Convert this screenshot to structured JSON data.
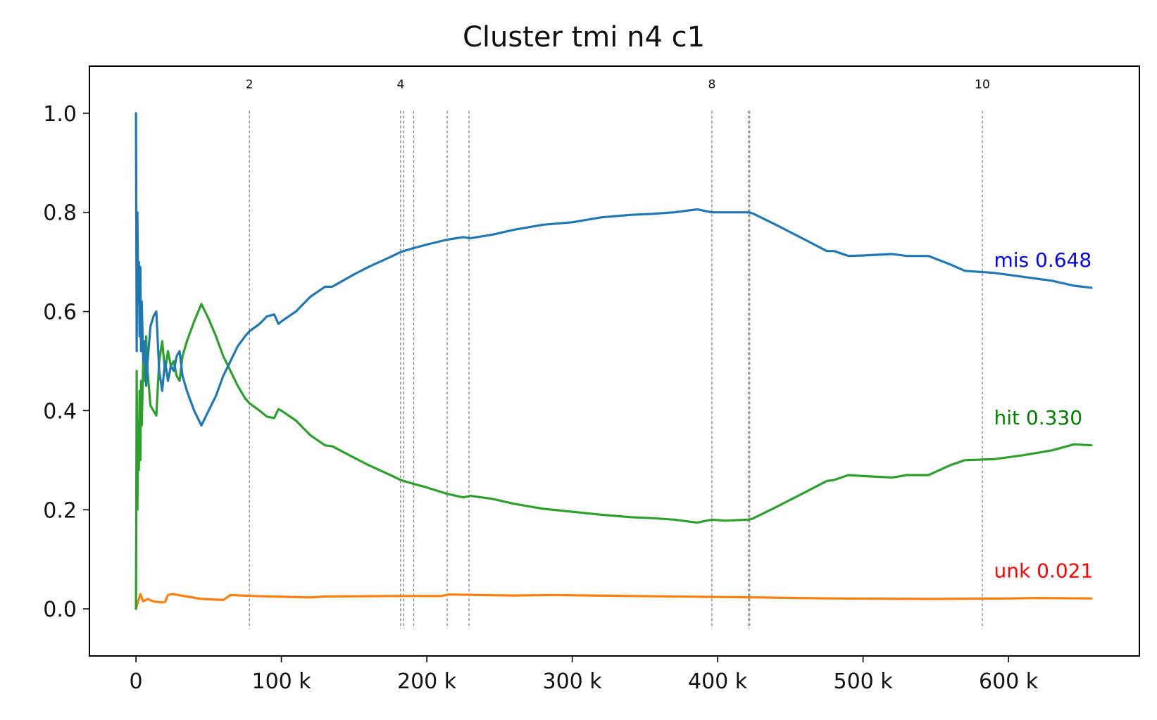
{
  "chart_data": {
    "type": "line",
    "title": "Cluster tmi n4 c1",
    "xlabel": "",
    "ylabel": "",
    "xlim": [
      -32000,
      690000
    ],
    "ylim": [
      -0.095,
      1.095
    ],
    "x_ticks": [
      {
        "value": 0,
        "label": "0"
      },
      {
        "value": 100000,
        "label": "100 k"
      },
      {
        "value": 200000,
        "label": "200 k"
      },
      {
        "value": 300000,
        "label": "300 k"
      },
      {
        "value": 400000,
        "label": "400 k"
      },
      {
        "value": 500000,
        "label": "500 k"
      },
      {
        "value": 600000,
        "label": "600 k"
      }
    ],
    "y_ticks": [
      {
        "value": 0.0,
        "label": "0.0"
      },
      {
        "value": 0.2,
        "label": "0.2"
      },
      {
        "value": 0.4,
        "label": "0.4"
      },
      {
        "value": 0.6,
        "label": "0.6"
      },
      {
        "value": 0.8,
        "label": "0.8"
      },
      {
        "value": 1.0,
        "label": "1.0"
      }
    ],
    "grid": false,
    "legend": "none",
    "vlines": [
      {
        "x": 78000,
        "label": "2"
      },
      {
        "x": 182000,
        "label": "4"
      },
      {
        "x": 184000,
        "label": ""
      },
      {
        "x": 191000,
        "label": ""
      },
      {
        "x": 214000,
        "label": ""
      },
      {
        "x": 229000,
        "label": ""
      },
      {
        "x": 396000,
        "label": "8"
      },
      {
        "x": 421000,
        "label": ""
      },
      {
        "x": 422000,
        "label": ""
      },
      {
        "x": 582000,
        "label": "10"
      }
    ],
    "series": [
      {
        "name": "mis",
        "color": "#1f77b4",
        "label_color": "#0000ff",
        "end_label": "mis 0.648",
        "points": [
          [
            0,
            1.0
          ],
          [
            500,
            0.52
          ],
          [
            1000,
            0.8
          ],
          [
            1500,
            0.62
          ],
          [
            2000,
            0.7
          ],
          [
            2500,
            0.55
          ],
          [
            3000,
            0.69
          ],
          [
            3500,
            0.52
          ],
          [
            4000,
            0.62
          ],
          [
            5000,
            0.5
          ],
          [
            6000,
            0.54
          ],
          [
            7000,
            0.45
          ],
          [
            8000,
            0.5
          ],
          [
            10000,
            0.57
          ],
          [
            12000,
            0.59
          ],
          [
            14000,
            0.6
          ],
          [
            16000,
            0.48
          ],
          [
            18000,
            0.44
          ],
          [
            20000,
            0.5
          ],
          [
            22000,
            0.46
          ],
          [
            24000,
            0.49
          ],
          [
            26000,
            0.48
          ],
          [
            28000,
            0.51
          ],
          [
            30000,
            0.52
          ],
          [
            32000,
            0.47
          ],
          [
            35000,
            0.44
          ],
          [
            40000,
            0.4
          ],
          [
            45000,
            0.37
          ],
          [
            50000,
            0.4
          ],
          [
            55000,
            0.43
          ],
          [
            60000,
            0.47
          ],
          [
            65000,
            0.5
          ],
          [
            70000,
            0.53
          ],
          [
            75000,
            0.55
          ],
          [
            78000,
            0.56
          ],
          [
            85000,
            0.575
          ],
          [
            90000,
            0.59
          ],
          [
            95000,
            0.594
          ],
          [
            98000,
            0.575
          ],
          [
            100000,
            0.58
          ],
          [
            110000,
            0.6
          ],
          [
            120000,
            0.63
          ],
          [
            130000,
            0.65
          ],
          [
            135000,
            0.65
          ],
          [
            150000,
            0.675
          ],
          [
            160000,
            0.69
          ],
          [
            175000,
            0.71
          ],
          [
            182000,
            0.72
          ],
          [
            191000,
            0.728
          ],
          [
            200000,
            0.735
          ],
          [
            214000,
            0.745
          ],
          [
            225000,
            0.75
          ],
          [
            230000,
            0.748
          ],
          [
            245000,
            0.755
          ],
          [
            260000,
            0.765
          ],
          [
            280000,
            0.775
          ],
          [
            300000,
            0.78
          ],
          [
            320000,
            0.79
          ],
          [
            340000,
            0.795
          ],
          [
            355000,
            0.797
          ],
          [
            370000,
            0.8
          ],
          [
            386000,
            0.806
          ],
          [
            396000,
            0.8
          ],
          [
            405000,
            0.8
          ],
          [
            421000,
            0.8
          ],
          [
            424000,
            0.798
          ],
          [
            440000,
            0.775
          ],
          [
            460000,
            0.745
          ],
          [
            475000,
            0.722
          ],
          [
            480000,
            0.722
          ],
          [
            490000,
            0.712
          ],
          [
            500000,
            0.713
          ],
          [
            520000,
            0.716
          ],
          [
            530000,
            0.712
          ],
          [
            545000,
            0.712
          ],
          [
            560000,
            0.695
          ],
          [
            570000,
            0.682
          ],
          [
            590000,
            0.678
          ],
          [
            610000,
            0.67
          ],
          [
            630000,
            0.662
          ],
          [
            645000,
            0.652
          ],
          [
            657000,
            0.648
          ]
        ]
      },
      {
        "name": "hit",
        "color": "#2ca02c",
        "label_color": "#008000",
        "end_label": "hit 0.330",
        "points": [
          [
            0,
            0.0
          ],
          [
            500,
            0.48
          ],
          [
            1000,
            0.2
          ],
          [
            1500,
            0.38
          ],
          [
            2000,
            0.28
          ],
          [
            2500,
            0.44
          ],
          [
            3000,
            0.3
          ],
          [
            3500,
            0.46
          ],
          [
            4000,
            0.37
          ],
          [
            5000,
            0.5
          ],
          [
            6000,
            0.46
          ],
          [
            7000,
            0.55
          ],
          [
            8000,
            0.48
          ],
          [
            10000,
            0.41
          ],
          [
            12000,
            0.4
          ],
          [
            14000,
            0.39
          ],
          [
            16000,
            0.5
          ],
          [
            18000,
            0.54
          ],
          [
            20000,
            0.48
          ],
          [
            22000,
            0.52
          ],
          [
            24000,
            0.49
          ],
          [
            26000,
            0.5
          ],
          [
            28000,
            0.47
          ],
          [
            30000,
            0.46
          ],
          [
            32000,
            0.51
          ],
          [
            35000,
            0.54
          ],
          [
            40000,
            0.58
          ],
          [
            45000,
            0.615
          ],
          [
            50000,
            0.585
          ],
          [
            55000,
            0.55
          ],
          [
            60000,
            0.51
          ],
          [
            65000,
            0.48
          ],
          [
            70000,
            0.45
          ],
          [
            75000,
            0.425
          ],
          [
            78000,
            0.415
          ],
          [
            85000,
            0.4
          ],
          [
            90000,
            0.388
          ],
          [
            95000,
            0.385
          ],
          [
            98000,
            0.403
          ],
          [
            100000,
            0.4
          ],
          [
            110000,
            0.38
          ],
          [
            120000,
            0.35
          ],
          [
            130000,
            0.33
          ],
          [
            135000,
            0.328
          ],
          [
            150000,
            0.305
          ],
          [
            160000,
            0.29
          ],
          [
            175000,
            0.27
          ],
          [
            182000,
            0.26
          ],
          [
            191000,
            0.252
          ],
          [
            200000,
            0.245
          ],
          [
            214000,
            0.232
          ],
          [
            225000,
            0.225
          ],
          [
            230000,
            0.228
          ],
          [
            245000,
            0.222
          ],
          [
            260000,
            0.212
          ],
          [
            280000,
            0.202
          ],
          [
            300000,
            0.196
          ],
          [
            320000,
            0.19
          ],
          [
            340000,
            0.185
          ],
          [
            355000,
            0.183
          ],
          [
            370000,
            0.18
          ],
          [
            386000,
            0.174
          ],
          [
            396000,
            0.18
          ],
          [
            405000,
            0.178
          ],
          [
            421000,
            0.18
          ],
          [
            424000,
            0.182
          ],
          [
            440000,
            0.205
          ],
          [
            460000,
            0.235
          ],
          [
            475000,
            0.258
          ],
          [
            480000,
            0.26
          ],
          [
            490000,
            0.27
          ],
          [
            500000,
            0.268
          ],
          [
            520000,
            0.265
          ],
          [
            530000,
            0.27
          ],
          [
            545000,
            0.27
          ],
          [
            560000,
            0.29
          ],
          [
            570000,
            0.3
          ],
          [
            590000,
            0.302
          ],
          [
            610000,
            0.31
          ],
          [
            630000,
            0.32
          ],
          [
            645000,
            0.332
          ],
          [
            657000,
            0.33
          ]
        ]
      },
      {
        "name": "unk",
        "color": "#ff7f0e",
        "label_color": "#ff0000",
        "end_label": "unk 0.021",
        "points": [
          [
            0,
            0.0
          ],
          [
            2000,
            0.02
          ],
          [
            3000,
            0.03
          ],
          [
            5000,
            0.015
          ],
          [
            8000,
            0.02
          ],
          [
            12000,
            0.015
          ],
          [
            18000,
            0.013
          ],
          [
            20000,
            0.014
          ],
          [
            22000,
            0.028
          ],
          [
            25000,
            0.03
          ],
          [
            35000,
            0.025
          ],
          [
            45000,
            0.02
          ],
          [
            60000,
            0.018
          ],
          [
            65000,
            0.028
          ],
          [
            80000,
            0.026
          ],
          [
            120000,
            0.023
          ],
          [
            130000,
            0.025
          ],
          [
            180000,
            0.026
          ],
          [
            210000,
            0.026
          ],
          [
            215000,
            0.029
          ],
          [
            260000,
            0.027
          ],
          [
            285000,
            0.028
          ],
          [
            340000,
            0.026
          ],
          [
            400000,
            0.024
          ],
          [
            430000,
            0.023
          ],
          [
            480000,
            0.021
          ],
          [
            550000,
            0.02
          ],
          [
            600000,
            0.021
          ],
          [
            620000,
            0.022
          ],
          [
            657000,
            0.021
          ]
        ]
      }
    ]
  }
}
